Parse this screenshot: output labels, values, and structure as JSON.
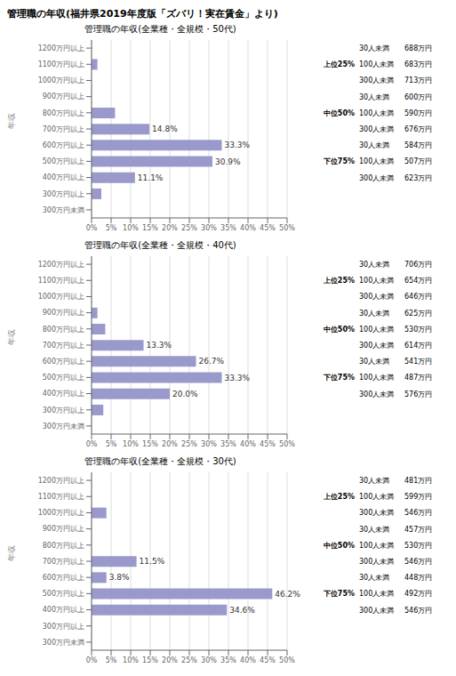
{
  "title": "管理職の年収(福井県2019年度版「ズバリ！実在賃金」より)",
  "chart_data": [
    {
      "type": "bar",
      "orientation": "horizontal",
      "title": "管理職の年収(全業種・全規模・50代)",
      "y_label": "年収",
      "categories": [
        "1200万円以上",
        "1100万円以上",
        "1000万円以上",
        "900万円以上",
        "800万円以上",
        "700万円以上",
        "600万円以上",
        "500万円以上",
        "400万円以上",
        "300万円以上",
        "300万円未満"
      ],
      "values": [
        0,
        1.5,
        0,
        0,
        6.0,
        14.8,
        33.3,
        30.9,
        11.1,
        2.5,
        0
      ],
      "value_labels": [
        null,
        null,
        null,
        null,
        null,
        "14.8%",
        "33.3%",
        "30.9%",
        "11.1%",
        null,
        null
      ],
      "color": "#9999cc",
      "xlim": [
        0,
        50
      ],
      "xticks": [
        {
          "value": 0,
          "label": "0%"
        },
        {
          "value": 5,
          "label": "5%"
        },
        {
          "value": 10,
          "label": "10%"
        },
        {
          "value": 15,
          "label": "15%"
        },
        {
          "value": 20,
          "label": "20%"
        },
        {
          "value": 25,
          "label": "25%"
        },
        {
          "value": 30,
          "label": "30%"
        },
        {
          "value": 35,
          "label": "35%"
        },
        {
          "value": 40,
          "label": "40%"
        },
        {
          "value": 45,
          "label": "45%"
        },
        {
          "value": 50,
          "label": "50%"
        }
      ],
      "grid": true,
      "annotations": [
        {
          "label": "上位25%",
          "lines": [
            [
              "30人未満",
              "688万円"
            ],
            [
              "100人未満",
              "683万円"
            ],
            [
              "300人未満",
              "713万円"
            ]
          ]
        },
        {
          "label": "中位50%",
          "lines": [
            [
              "30人未満",
              "600万円"
            ],
            [
              "100人未満",
              "590万円"
            ],
            [
              "300人未満",
              "676万円"
            ]
          ]
        },
        {
          "label": "下位75%",
          "lines": [
            [
              "30人未満",
              "584万円"
            ],
            [
              "100人未満",
              "507万円"
            ],
            [
              "300人未満",
              "623万円"
            ]
          ]
        }
      ]
    },
    {
      "type": "bar",
      "orientation": "horizontal",
      "title": "管理職の年収(全業種・全規模・40代)",
      "y_label": "年収",
      "categories": [
        "1200万円以上",
        "1100万円以上",
        "1000万円以上",
        "900万円以上",
        "800万円以上",
        "700万円以上",
        "600万円以上",
        "500万円以上",
        "400万円以上",
        "300万円以上",
        "300万円未満"
      ],
      "values": [
        0,
        0,
        0,
        1.5,
        3.5,
        13.3,
        26.7,
        33.3,
        20.0,
        3.0,
        0
      ],
      "value_labels": [
        null,
        null,
        null,
        null,
        null,
        "13.3%",
        "26.7%",
        "33.3%",
        "20.0%",
        null,
        null
      ],
      "color": "#9999cc",
      "xlim": [
        0,
        50
      ],
      "xticks": [
        {
          "value": 0,
          "label": "0%"
        },
        {
          "value": 5,
          "label": "5%"
        },
        {
          "value": 10,
          "label": "10%"
        },
        {
          "value": 15,
          "label": "15%"
        },
        {
          "value": 20,
          "label": "20%"
        },
        {
          "value": 25,
          "label": "25%"
        },
        {
          "value": 30,
          "label": "30%"
        },
        {
          "value": 35,
          "label": "35%"
        },
        {
          "value": 40,
          "label": "40%"
        },
        {
          "value": 45,
          "label": "45%"
        },
        {
          "value": 50,
          "label": "50%"
        }
      ],
      "grid": true,
      "annotations": [
        {
          "label": "上位25%",
          "lines": [
            [
              "30人未満",
              "706万円"
            ],
            [
              "100人未満",
              "654万円"
            ],
            [
              "300人未満",
              "646万円"
            ]
          ]
        },
        {
          "label": "中位50%",
          "lines": [
            [
              "30人未満",
              "625万円"
            ],
            [
              "100人未満",
              "530万円"
            ],
            [
              "300人未満",
              "614万円"
            ]
          ]
        },
        {
          "label": "下位75%",
          "lines": [
            [
              "30人未満",
              "541万円"
            ],
            [
              "100人未満",
              "487万円"
            ],
            [
              "300人未満",
              "576万円"
            ]
          ]
        }
      ]
    },
    {
      "type": "bar",
      "orientation": "horizontal",
      "title": "管理職の年収(全業種・全規模・30代)",
      "y_label": "年収",
      "categories": [
        "1200万円以上",
        "1100万円以上",
        "1000万円以上",
        "900万円以上",
        "800万円以上",
        "700万円以上",
        "600万円以上",
        "500万円以上",
        "400万円以上",
        "300万円以上",
        "300万円未満"
      ],
      "values": [
        0,
        0,
        3.8,
        0,
        0,
        11.5,
        3.8,
        46.2,
        34.6,
        0,
        0
      ],
      "value_labels": [
        null,
        null,
        null,
        null,
        null,
        "11.5%",
        "3.8%",
        "46.2%",
        "34.6%",
        null,
        null
      ],
      "color": "#9999cc",
      "xlim": [
        0,
        50
      ],
      "xticks": [
        {
          "value": 0,
          "label": "0%"
        },
        {
          "value": 5,
          "label": "5%"
        },
        {
          "value": 10,
          "label": "10%"
        },
        {
          "value": 15,
          "label": "15%"
        },
        {
          "value": 20,
          "label": "20%"
        },
        {
          "value": 25,
          "label": "25%"
        },
        {
          "value": 30,
          "label": "30%"
        },
        {
          "value": 35,
          "label": "35%"
        },
        {
          "value": 40,
          "label": "40%"
        },
        {
          "value": 45,
          "label": "45%"
        },
        {
          "value": 50,
          "label": "50%"
        }
      ],
      "grid": true,
      "annotations": [
        {
          "label": "上位25%",
          "lines": [
            [
              "30人未満",
              "481万円"
            ],
            [
              "100人未満",
              "599万円"
            ],
            [
              "300人未満",
              "546万円"
            ]
          ]
        },
        {
          "label": "中位50%",
          "lines": [
            [
              "30人未満",
              "457万円"
            ],
            [
              "100人未満",
              "530万円"
            ],
            [
              "300人未満",
              "546万円"
            ]
          ]
        },
        {
          "label": "下位75%",
          "lines": [
            [
              "30人未満",
              "448万円"
            ],
            [
              "100人未満",
              "492万円"
            ],
            [
              "300人未満",
              "546万円"
            ]
          ]
        }
      ]
    }
  ]
}
